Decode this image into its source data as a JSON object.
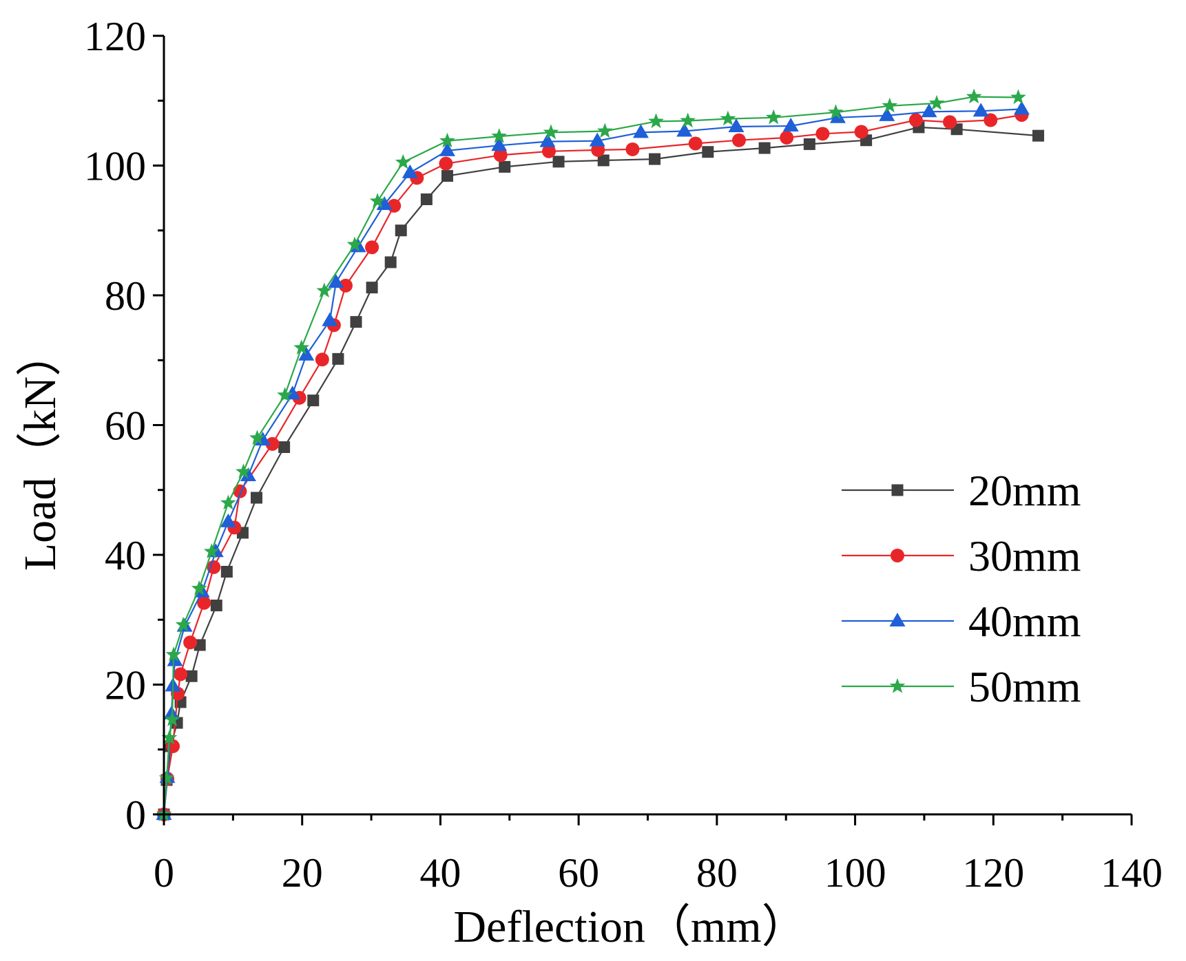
{
  "chart_data": {
    "type": "line",
    "title": "",
    "xlabel": "Deflection（mm）",
    "ylabel": "Load（kN）",
    "xlim": [
      0,
      140
    ],
    "ylim": [
      0,
      120
    ],
    "xticks": [
      "0",
      "20",
      "40",
      "60",
      "80",
      "100",
      "120",
      "140"
    ],
    "yticks": [
      "0",
      "20",
      "40",
      "60",
      "80",
      "100",
      "120"
    ],
    "grid": false,
    "legend_position": "right",
    "series": [
      {
        "name": "20mm",
        "color": "#404040",
        "marker": "square",
        "x": [
          0,
          0.4,
          1.0,
          1.9,
          2.4,
          4.0,
          5.2,
          7.6,
          9.1,
          11.4,
          13.4,
          17.4,
          21.6,
          25.2,
          27.8,
          30.1,
          32.8,
          34.3,
          38.0,
          41.0,
          49.3,
          57.1,
          63.6,
          71.0,
          78.7,
          86.9,
          93.4,
          101.6,
          109.2,
          114.7,
          126.5
        ],
        "y": [
          0,
          5.3,
          10.5,
          14.1,
          17.3,
          21.3,
          26.1,
          32.2,
          37.4,
          43.4,
          48.8,
          56.6,
          63.8,
          70.2,
          75.9,
          81.2,
          85.1,
          90.0,
          94.8,
          98.4,
          99.8,
          100.6,
          100.8,
          101.0,
          102.1,
          102.7,
          103.3,
          103.9,
          105.9,
          105.6,
          104.6
        ]
      },
      {
        "name": "30mm",
        "color": "#e8262a",
        "marker": "circle",
        "x": [
          0,
          0.5,
          1.3,
          2.0,
          2.4,
          3.8,
          5.8,
          7.2,
          10.2,
          11.0,
          15.7,
          19.6,
          22.9,
          24.6,
          26.3,
          30.1,
          33.3,
          36.6,
          40.8,
          48.7,
          55.7,
          62.8,
          67.8,
          76.9,
          83.2,
          90.1,
          95.3,
          100.9,
          108.8,
          113.7,
          119.6,
          124.1
        ],
        "y": [
          0,
          5.5,
          10.5,
          18.6,
          21.6,
          26.5,
          32.6,
          38.1,
          44.2,
          49.8,
          57.1,
          64.2,
          70.1,
          75.4,
          81.5,
          87.4,
          93.8,
          98.1,
          100.3,
          101.6,
          102.2,
          102.4,
          102.5,
          103.4,
          103.9,
          104.3,
          104.9,
          105.2,
          107.0,
          106.7,
          107.0,
          107.8
        ]
      },
      {
        "name": "40mm",
        "color": "#1f5fd8",
        "marker": "triangle",
        "x": [
          0,
          0.5,
          1.1,
          1.3,
          1.6,
          3.0,
          5.5,
          7.5,
          9.3,
          12.2,
          14.3,
          18.6,
          20.6,
          24.0,
          24.9,
          28.1,
          31.9,
          35.6,
          41.0,
          48.5,
          55.5,
          62.7,
          69.0,
          75.3,
          82.8,
          90.7,
          97.5,
          104.6,
          110.7,
          118.2,
          124.1
        ],
        "y": [
          0,
          5.7,
          15.5,
          19.8,
          23.7,
          29.0,
          34.3,
          40.5,
          45.1,
          52.2,
          57.7,
          64.8,
          70.8,
          76.1,
          82.0,
          87.5,
          94.0,
          98.9,
          102.3,
          103.1,
          103.7,
          103.8,
          105.1,
          105.3,
          106.0,
          106.1,
          107.4,
          107.7,
          108.3,
          108.4,
          108.7
        ]
      },
      {
        "name": "50mm",
        "color": "#2ba84a",
        "marker": "star",
        "x": [
          0,
          0.4,
          0.8,
          1.2,
          1.4,
          2.8,
          5.1,
          6.9,
          9.3,
          11.5,
          13.5,
          17.5,
          19.9,
          23.2,
          27.6,
          30.9,
          34.6,
          41.0,
          48.5,
          56.0,
          63.8,
          71.2,
          75.8,
          81.6,
          88.2,
          97.2,
          105.0,
          111.8,
          117.2,
          123.6
        ],
        "y": [
          0,
          5.6,
          11.8,
          14.6,
          24.6,
          29.2,
          34.8,
          40.5,
          48.0,
          52.8,
          58.0,
          64.6,
          71.9,
          80.7,
          87.8,
          94.5,
          100.5,
          103.8,
          104.5,
          105.1,
          105.3,
          106.8,
          106.9,
          107.2,
          107.4,
          108.2,
          109.2,
          109.6,
          110.6,
          110.5
        ]
      }
    ]
  }
}
